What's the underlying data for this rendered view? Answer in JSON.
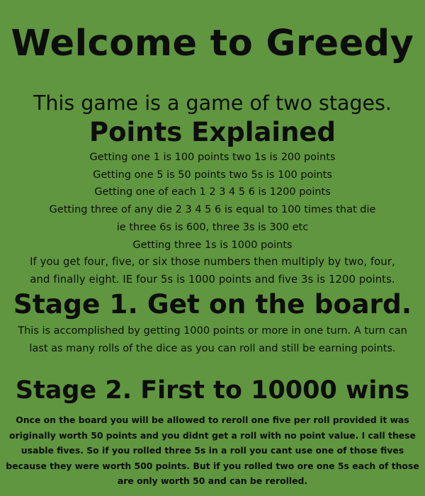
{
  "header": {
    "title": "Welcome to Greedy",
    "intro": "This game is a game of two stages."
  },
  "points": {
    "heading": "Points Explained",
    "lines": [
      "Getting one 1 is 100 points two 1s is 200 points",
      "Getting one 5 is 50 points two 5s is 100 points",
      "Getting one of each 1 2 3 4 5 6 is 1200 points",
      "Getting three of any die 2 3 4 5 6 is equal to 100 times that die",
      "ie three 6s is 600, three 3s is 300 etc",
      "Getting three 1s is 1000 points",
      "If you get four, five, or six those numbers then multiply by two, four,",
      "and finally eight. IE four 5s is 1000 points and five 3s is 1200 points."
    ]
  },
  "stage1": {
    "heading": "Stage 1. Get on the board.",
    "body": "This is accomplished by getting 1000 points or more in one turn. A turn can last as many rolls of the dice as you can roll and still be earning points."
  },
  "stage2": {
    "heading": "Stage 2. First to 10000 wins",
    "body": "Once on the board you will be allowed to reroll one five per roll provided it was originally worth 50 points and you didnt get a roll with no point value. I call these usable fives. So if you rolled three 5s in a roll you cant use one of those fives because they were worth 500 points. But if you rolled two ore one 5s each of those are only worth 50 and can be rerolled."
  },
  "colors": {
    "background": "#5f963f",
    "text": "#0d0d0d"
  }
}
